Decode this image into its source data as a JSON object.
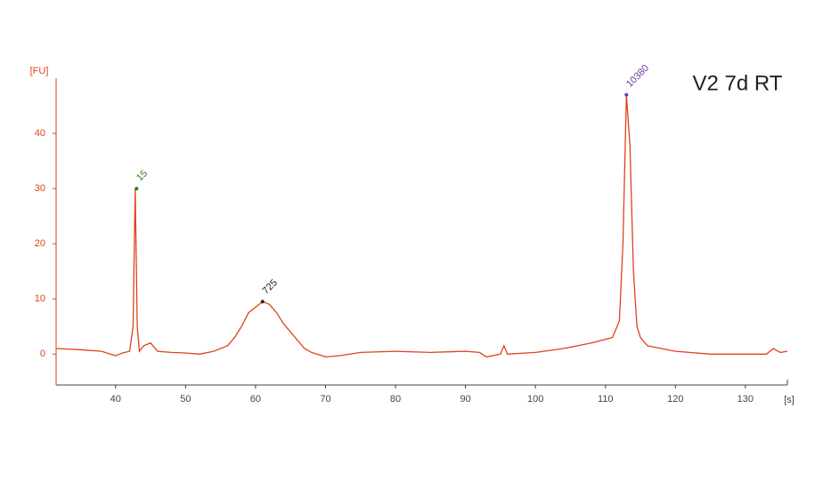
{
  "chart_data": {
    "type": "line",
    "title": "V2 7d RT",
    "y_label": "[FU]",
    "x_label": "[s]",
    "x": [
      31.5,
      35,
      38,
      40,
      41,
      42,
      42.5,
      42.8,
      43.1,
      43.4,
      44,
      45,
      46,
      48,
      50,
      52,
      54,
      56,
      57,
      58,
      59,
      60,
      61,
      62,
      63,
      64,
      65,
      66,
      67,
      68,
      70,
      72,
      75,
      80,
      85,
      90,
      92,
      93,
      95,
      95.5,
      96,
      100,
      104,
      108,
      111,
      112,
      112.5,
      113,
      113.5,
      114,
      114.5,
      115,
      116,
      118,
      120,
      125,
      130,
      133,
      134,
      135,
      136
    ],
    "values": [
      1,
      0.8,
      0.5,
      -0.3,
      0.2,
      0.5,
      5,
      30,
      5,
      0.5,
      1.5,
      2,
      0.5,
      0.3,
      0.2,
      0,
      0.5,
      1.5,
      3,
      5,
      7.5,
      8.5,
      9.5,
      9,
      7.5,
      5.5,
      4,
      2.5,
      1,
      0.3,
      -0.5,
      -0.3,
      0.3,
      0.5,
      0.3,
      0.5,
      0.3,
      -0.5,
      0,
      1.5,
      0,
      0.3,
      1,
      2,
      3,
      6,
      20,
      47,
      38,
      15,
      5,
      3,
      1.5,
      1,
      0.5,
      0,
      0,
      0,
      1,
      0.3,
      0.5
    ],
    "color": "#e0401c",
    "xlim": [
      31.5,
      136
    ],
    "ylim": [
      -5.6,
      50
    ],
    "xticks": [
      40,
      50,
      60,
      70,
      80,
      90,
      100,
      110,
      120,
      130
    ],
    "yticks": [
      0,
      10,
      20,
      30,
      40
    ],
    "peaks": [
      {
        "label": "15",
        "x": 43,
        "value": 30,
        "color": "#2e7d1e"
      },
      {
        "label": "725",
        "x": 61,
        "value": 9.5,
        "color": "#222222"
      },
      {
        "label": "10380",
        "x": 113,
        "value": 47,
        "color": "#6a3d9a"
      }
    ]
  }
}
